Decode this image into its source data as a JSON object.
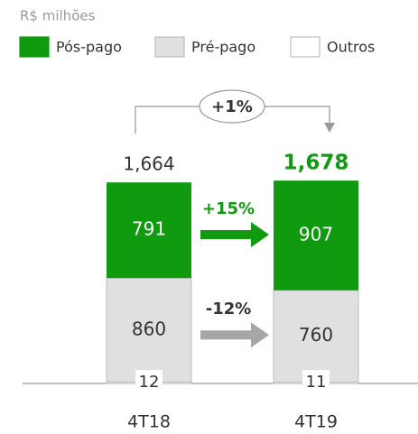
{
  "chart_data": {
    "type": "stacked_bar",
    "subtitle": "R$ milhões",
    "categories": [
      "4T18",
      "4T19"
    ],
    "series": [
      {
        "name": "Pós-pago",
        "color": "#109a10",
        "values": [
          791,
          907
        ]
      },
      {
        "name": "Pré-pago",
        "color": "#e0e0e0",
        "values": [
          860,
          760
        ]
      },
      {
        "name": "Outros",
        "color": "#ffffff",
        "values": [
          12,
          11
        ]
      }
    ],
    "total_labels": [
      "1,664",
      "1,678"
    ],
    "annotations": {
      "total_change": "+1%",
      "series_changes": [
        "+15%",
        "-12%"
      ]
    }
  }
}
